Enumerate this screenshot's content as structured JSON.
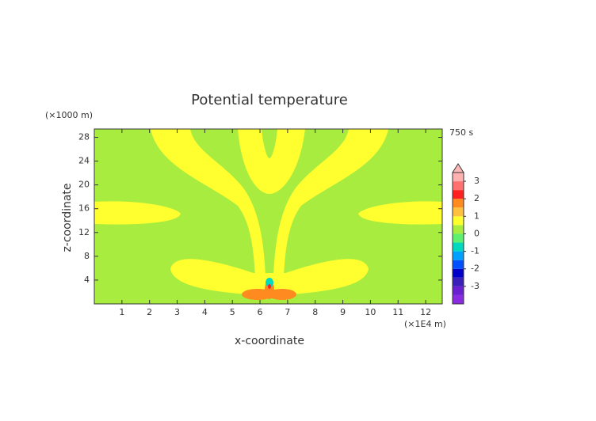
{
  "chart_data": {
    "type": "contour",
    "title": "Potential temperature",
    "x_label": "x-coordinate",
    "y_label": "z-coordinate",
    "x_unit": "(×1E4 m)",
    "y_unit": "(×1000 m)",
    "time_label": "750 s",
    "xlim": [
      0,
      12.6
    ],
    "ylim": [
      0,
      29.4
    ],
    "xticks": [
      1,
      2,
      3,
      4,
      5,
      6,
      7,
      8,
      9,
      10,
      11,
      12
    ],
    "yticks": [
      4,
      8,
      12,
      16,
      20,
      24,
      28
    ],
    "colorbar": {
      "levels": [
        -4,
        -3.5,
        -3,
        -2.5,
        -2,
        -1.5,
        -1,
        -0.5,
        0,
        0.5,
        1,
        1.5,
        2,
        2.5,
        3,
        3.5
      ],
      "colors": [
        "#8a2be2",
        "#6a1fd0",
        "#3a1fb8",
        "#0000c8",
        "#0050ff",
        "#00a0ff",
        "#00d8c0",
        "#60f070",
        "#a8ec40",
        "#ffff30",
        "#ffc040",
        "#ff8a20",
        "#ff2020",
        "#ff7070",
        "#ffb0b0"
      ],
      "over_color": "#ffb8b8",
      "ticks": [
        -3,
        -2,
        -1,
        0,
        1,
        2,
        3
      ]
    }
  }
}
